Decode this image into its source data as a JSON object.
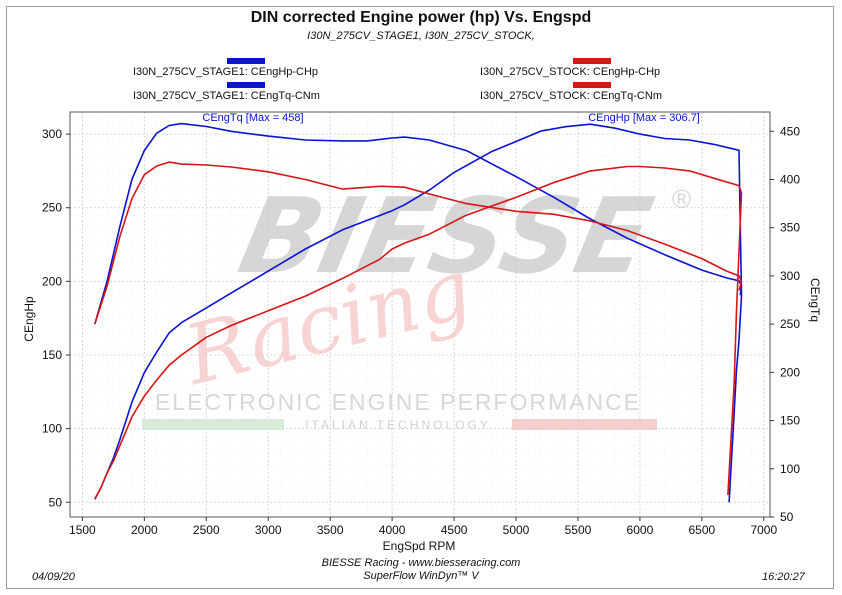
{
  "chart_data": {
    "type": "line",
    "title": "DIN corrected Engine power (hp) Vs. Engspd",
    "subtitle": "I30N_275CV_STAGE1, I30N_275CV_STOCK,",
    "xlabel": "EngSpd RPM",
    "ylabel_left": "CEngHp",
    "ylabel_right": "CEngTq",
    "xlim": [
      1400,
      7050
    ],
    "ylim_left": [
      40,
      315
    ],
    "ylim_right": [
      50,
      470
    ],
    "x_ticks": [
      1500,
      2000,
      2500,
      3000,
      3500,
      4000,
      4500,
      5000,
      5500,
      6000,
      6500,
      7000
    ],
    "y_left_ticks": [
      50,
      100,
      150,
      200,
      250,
      300
    ],
    "y_right_ticks": [
      50,
      100,
      150,
      200,
      250,
      300,
      350,
      400,
      450
    ],
    "grid": true,
    "legend_position": "top",
    "colors": {
      "stage1": "#0a12d6",
      "stock": "#d81414"
    },
    "series": [
      {
        "name": "I30N_275CV_STAGE1: CEngHp-CHp",
        "axis": "left",
        "color": "#0a12d6",
        "x": [
          1600,
          1650,
          1700,
          1750,
          1800,
          1850,
          1900,
          1950,
          2000,
          2100,
          2200,
          2300,
          2500,
          2700,
          3000,
          3300,
          3600,
          4000,
          4100,
          4300,
          4500,
          4800,
          5000,
          5200,
          5400,
          5600,
          5800,
          6000,
          6200,
          6400,
          6600,
          6750,
          6800,
          6820,
          6800,
          6780,
          6760,
          6740,
          6720
        ],
        "values": [
          52,
          60,
          70,
          80,
          92,
          105,
          118,
          128,
          138,
          152,
          165,
          172,
          182,
          192,
          207,
          222,
          235,
          248,
          252,
          262,
          274,
          288,
          295,
          302,
          305,
          306.7,
          304,
          300,
          297,
          296,
          293,
          290,
          289,
          190,
          160,
          140,
          110,
          80,
          50
        ]
      },
      {
        "name": "I30N_275CV_STAGE1: CEngTq-CNm",
        "axis": "right",
        "color": "#0a12d6",
        "x": [
          1600,
          1700,
          1800,
          1900,
          2000,
          2100,
          2200,
          2300,
          2500,
          2700,
          3000,
          3300,
          3600,
          3800,
          4000,
          4100,
          4300,
          4600,
          5000,
          5300,
          5600,
          5900,
          6200,
          6500,
          6700,
          6800,
          6820,
          6810
        ],
        "values": [
          250,
          295,
          350,
          400,
          430,
          448,
          456,
          458,
          455,
          450,
          445,
          441,
          440,
          440,
          443,
          444,
          441,
          430,
          403,
          382,
          359,
          339,
          322,
          306,
          298,
          295,
          290,
          280
        ]
      },
      {
        "name": "I30N_275CV_STOCK: CEngHp-CHp",
        "axis": "left",
        "color": "#d81414",
        "x": [
          1600,
          1650,
          1700,
          1750,
          1800,
          1850,
          1900,
          1950,
          2000,
          2100,
          2200,
          2300,
          2500,
          2700,
          3000,
          3300,
          3600,
          3900,
          4000,
          4100,
          4300,
          4600,
          5000,
          5300,
          5600,
          5900,
          6000,
          6200,
          6400,
          6600,
          6800,
          6820,
          6800,
          6780,
          6760,
          6740,
          6720,
          6710
        ],
        "values": [
          52,
          60,
          70,
          78,
          88,
          98,
          108,
          115,
          122,
          133,
          143,
          150,
          162,
          170,
          180,
          190,
          202,
          215,
          222,
          226,
          232,
          245,
          257,
          267,
          275,
          278,
          278,
          277,
          275,
          270,
          265,
          260,
          220,
          180,
          130,
          100,
          70,
          55
        ]
      },
      {
        "name": "I30N_275CV_STOCK: CEngTq-CNm",
        "axis": "right",
        "color": "#d81414",
        "x": [
          1600,
          1700,
          1800,
          1900,
          2000,
          2100,
          2200,
          2300,
          2500,
          2700,
          3000,
          3300,
          3600,
          3900,
          4100,
          4300,
          4600,
          5000,
          5300,
          5600,
          5900,
          6200,
          6500,
          6700,
          6800,
          6820,
          6800
        ],
        "values": [
          250,
          290,
          340,
          380,
          405,
          414,
          418,
          416,
          415,
          413,
          408,
          400,
          390,
          393,
          392,
          385,
          375,
          367,
          364,
          357,
          347,
          333,
          318,
          305,
          300,
          294,
          285
        ]
      }
    ],
    "annotations": [
      {
        "text": "CEngTq [Max = 458]",
        "x": 2500,
        "y_right": 458
      },
      {
        "text": "CEngHp [Max = 306.7]",
        "x": 5750,
        "y_left": 306.7
      }
    ],
    "watermark": {
      "brand": "BIESSE",
      "script": "Racing",
      "tagline": "ELECTRONIC ENGINE PERFORMANCE",
      "subtagline": "ITALIAN TECHNOLOGY"
    }
  },
  "footer": {
    "date": "04/09/20",
    "company": "BIESSE Racing - www.biesseracing.com",
    "software": "SuperFlow WinDyn™ V",
    "time": "16:20:27"
  }
}
